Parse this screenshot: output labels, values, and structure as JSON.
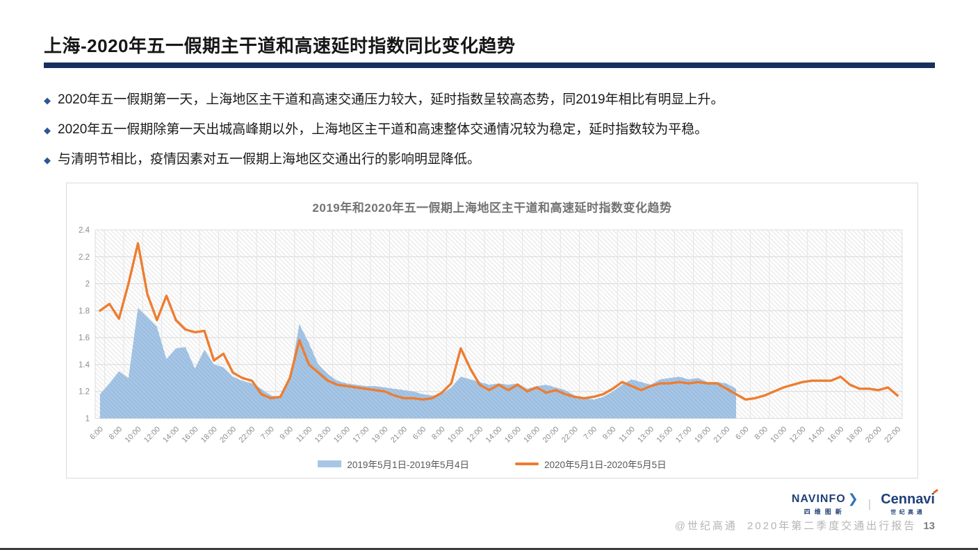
{
  "slide": {
    "title": "上海-2020年五一假期主干道和高速延时指数同比变化趋势",
    "bullet_marker": "◆",
    "bullets": [
      "2020年五一假期第一天，上海地区主干道和高速交通压力较大，延时指数呈较高态势，同2019年相比有明显上升。",
      "2020年五一假期除第一天出城高峰期以外，上海地区主干道和高速整体交通情况较为稳定，延时指数较为平稳。",
      "与清明节相比，疫情因素对五一假期上海地区交通出行的影响明显降低。"
    ]
  },
  "chart_data": {
    "type": "area+line",
    "title": "2019年和2020年五一假期上海地区主干道和高速延时指数变化趋势",
    "ylabel": "",
    "xlabel": "",
    "ylim": [
      1,
      2.4
    ],
    "yticks": [
      "1",
      "1.2",
      "1.4",
      "1.6",
      "1.8",
      "2",
      "2.2",
      "2.4"
    ],
    "grid": true,
    "legend_position": "bottom",
    "x_label_interval": 2,
    "x_labels": [
      "6:00",
      "8:00",
      "10:00",
      "12:00",
      "14:00",
      "16:00",
      "18:00",
      "20:00",
      "22:00",
      "7:00",
      "9:00",
      "11:00",
      "13:00",
      "15:00",
      "17:00",
      "19:00",
      "21:00",
      "6:00",
      "8:00",
      "10:00",
      "12:00",
      "14:00",
      "16:00",
      "18:00",
      "20:00",
      "22:00",
      "7:00",
      "9:00",
      "11:00",
      "13:00",
      "15:00",
      "17:00",
      "19:00",
      "21:00",
      "6:00",
      "8:00",
      "10:00",
      "12:00",
      "14:00",
      "16:00",
      "18:00",
      "20:00",
      "22:00"
    ],
    "series": [
      {
        "name": "2019年5月1日-2019年5月4日",
        "type": "area",
        "color": "#A7C6E6",
        "pattern_stripe": "#97BADD",
        "values": [
          1.18,
          1.26,
          1.35,
          1.3,
          1.82,
          1.75,
          1.68,
          1.44,
          1.52,
          1.53,
          1.37,
          1.51,
          1.4,
          1.38,
          1.31,
          1.28,
          1.26,
          1.22,
          1.17,
          1.16,
          1.3,
          1.7,
          1.56,
          1.4,
          1.33,
          1.28,
          1.26,
          1.25,
          1.24,
          1.24,
          1.23,
          1.22,
          1.21,
          1.2,
          1.18,
          1.17,
          1.18,
          1.23,
          1.31,
          1.29,
          1.27,
          1.25,
          1.26,
          1.25,
          1.26,
          1.22,
          1.24,
          1.25,
          1.23,
          1.21,
          1.17,
          1.15,
          1.14,
          1.16,
          1.2,
          1.25,
          1.29,
          1.27,
          1.25,
          1.29,
          1.3,
          1.31,
          1.29,
          1.3,
          1.27,
          1.27,
          1.26,
          1.22
        ]
      },
      {
        "name": "2020年5月1日-2020年5月5日",
        "type": "line",
        "color": "#ED7D31",
        "values": [
          1.8,
          1.85,
          1.74,
          2.0,
          2.3,
          1.92,
          1.73,
          1.91,
          1.73,
          1.66,
          1.64,
          1.65,
          1.43,
          1.48,
          1.34,
          1.3,
          1.28,
          1.18,
          1.15,
          1.16,
          1.3,
          1.58,
          1.4,
          1.34,
          1.28,
          1.25,
          1.24,
          1.23,
          1.22,
          1.21,
          1.2,
          1.17,
          1.15,
          1.15,
          1.14,
          1.15,
          1.19,
          1.26,
          1.52,
          1.37,
          1.25,
          1.21,
          1.25,
          1.21,
          1.25,
          1.2,
          1.23,
          1.19,
          1.21,
          1.18,
          1.16,
          1.15,
          1.16,
          1.18,
          1.22,
          1.27,
          1.24,
          1.21,
          1.24,
          1.26,
          1.26,
          1.27,
          1.26,
          1.27,
          1.26,
          1.26,
          1.22,
          1.18,
          1.14,
          1.15,
          1.17,
          1.2,
          1.23,
          1.25,
          1.27,
          1.28,
          1.28,
          1.28,
          1.31,
          1.25,
          1.22,
          1.22,
          1.21,
          1.23,
          1.17
        ]
      }
    ]
  },
  "logos": {
    "navinfo": {
      "name": "NAVINFO",
      "sub": "四维图新",
      "chevron": "❯"
    },
    "divider": "|",
    "cennavi": {
      "name": "Cennavi",
      "sub": "世纪高通"
    }
  },
  "footer": {
    "credit": "@世纪高通",
    "report": "2020年第二季度交通出行报告",
    "page": "13"
  },
  "colors": {
    "accent_bar": "#182F5E",
    "bullet": "#2F5597",
    "chart_title": "#737373",
    "axis_text": "#8C8C8C",
    "grid": "#D9D9D9",
    "grid_vertical": "#E4E4E4",
    "hatch": "#ECECEC",
    "legend_text": "#595959",
    "footer_text": "#B5B5B5",
    "logo_navy": "#1F4077",
    "logo_blue": "#2E75B6",
    "cennavi_accent": "#E8611A"
  }
}
